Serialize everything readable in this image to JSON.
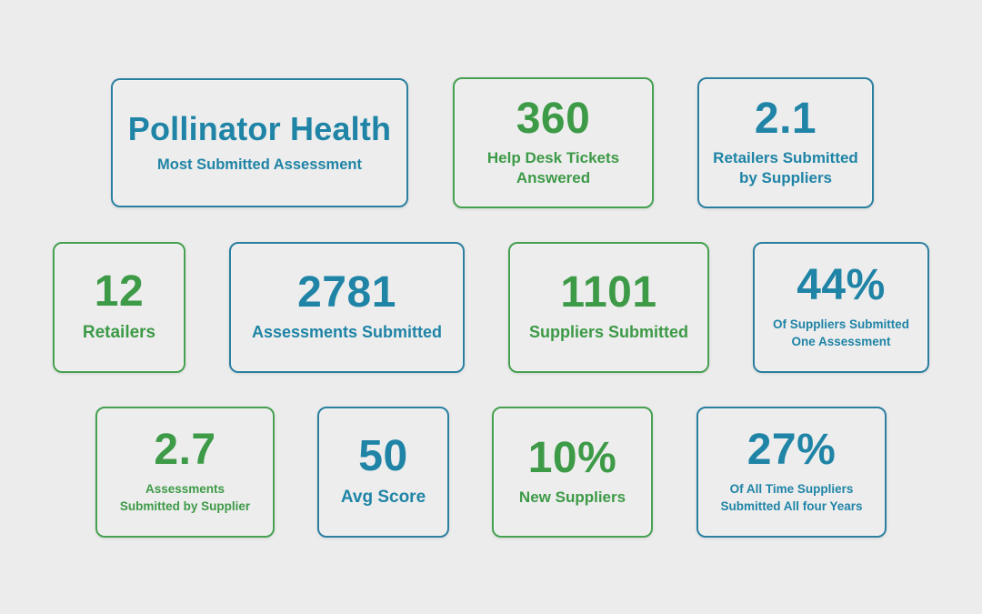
{
  "stats": [
    {
      "value": "Pollinator Health",
      "label": "Most Submitted Assessment",
      "color": "#1f84a6"
    },
    {
      "value": "360",
      "label": "Help Desk Tickets\nAnswered",
      "color": "#3d9a47"
    },
    {
      "value": "2.1",
      "label": "Retailers Submitted\nby Suppliers",
      "color": "#1f84a6"
    },
    {
      "value": "12",
      "label": "Retailers",
      "color": "#3d9a47"
    },
    {
      "value": "2781",
      "label": "Assessments Submitted",
      "color": "#1f84a6"
    },
    {
      "value": "1101",
      "label": "Suppliers Submitted",
      "color": "#3d9a47"
    },
    {
      "value": "44%",
      "label": "Of Suppliers Submitted\nOne Assessment",
      "color": "#1f84a6"
    },
    {
      "value": "2.7",
      "label": "Assessments\nSubmitted by Supplier",
      "color": "#3d9a47"
    },
    {
      "value": "50",
      "label": "Avg Score",
      "color": "#1f84a6"
    },
    {
      "value": "10%",
      "label": "New Suppliers",
      "color": "#3d9a47"
    },
    {
      "value": "27%",
      "label": "Of All Time Suppliers\nSubmitted All four Years",
      "color": "#1f84a6"
    }
  ]
}
